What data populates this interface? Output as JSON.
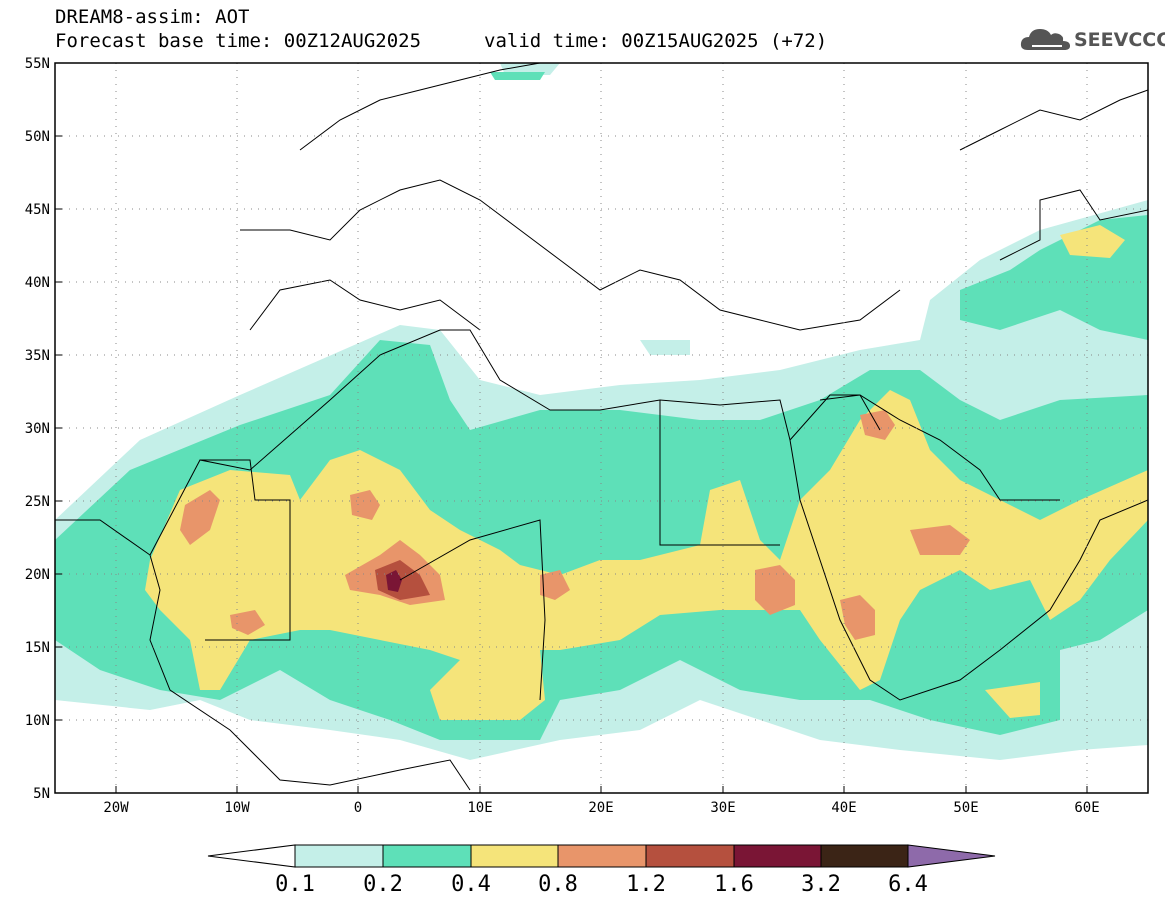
{
  "header": {
    "title": "DREAM8-assim: AOT",
    "base_time": "Forecast base time: 00Z12AUG2025",
    "valid_time": "valid time: 00Z15AUG2025 (+72)"
  },
  "logo": {
    "text": "SEEVCCC",
    "icon": "cloud-logo-icon",
    "color": "#555555"
  },
  "map": {
    "lat_labels": [
      "55N",
      "50N",
      "45N",
      "40N",
      "35N",
      "30N",
      "25N",
      "20N",
      "15N",
      "10N",
      "5N"
    ],
    "lon_labels": [
      "20W",
      "10W",
      "0",
      "10E",
      "20E",
      "30E",
      "40E",
      "50E",
      "60E"
    ],
    "lat_range": [
      5,
      55
    ],
    "lon_range": [
      -25,
      65
    ]
  },
  "colorbar": {
    "labels": [
      "0.1",
      "0.2",
      "0.4",
      "0.8",
      "1.2",
      "1.6",
      "3.2",
      "6.4"
    ],
    "colors": [
      "#c4efe8",
      "#5ee0b8",
      "#f5e47a",
      "#e8956a",
      "#b5503e",
      "#7a1535",
      "#3b2416",
      "#8e6aaa"
    ]
  },
  "chart_data": {
    "type": "heatmap",
    "title": "DREAM8-assim: AOT",
    "levels": [
      0.1,
      0.2,
      0.4,
      0.8,
      1.2,
      1.6,
      3.2,
      6.4
    ],
    "x_ticks": [
      "20W",
      "10W",
      "0",
      "10E",
      "20E",
      "30E",
      "40E",
      "50E",
      "60E"
    ],
    "y_ticks": [
      "55N",
      "50N",
      "45N",
      "40N",
      "35N",
      "30N",
      "25N",
      "20N",
      "15N",
      "10N",
      "5N"
    ],
    "ylim": [
      5,
      55
    ],
    "xlim": [
      -25,
      65
    ]
  }
}
